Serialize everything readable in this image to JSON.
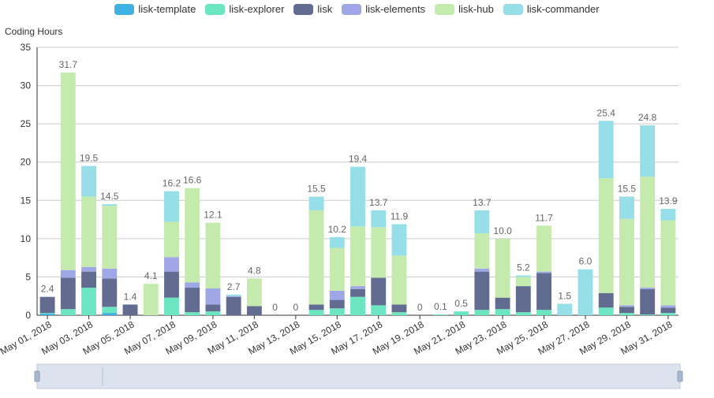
{
  "chart_data": {
    "type": "bar",
    "stacked": true,
    "ylabel": "Coding Hours",
    "ylim": [
      0,
      35
    ],
    "yticks": [
      0,
      5,
      10,
      15,
      20,
      25,
      30,
      35
    ],
    "grid": true,
    "legend_position": "top-center",
    "x_tick_labels": [
      "May 01, 2018",
      "May 03, 2018",
      "May 05, 2018",
      "May 07, 2018",
      "May 09, 2018",
      "May 11, 2018",
      "May 13, 2018",
      "May 15, 2018",
      "May 17, 2018",
      "May 19, 2018",
      "May 21, 2018",
      "May 23, 2018",
      "May 25, 2018",
      "May 27, 2018",
      "May 29, 2018",
      "May 31, 2018"
    ],
    "categories": [
      "May 01, 2018",
      "May 02, 2018",
      "May 03, 2018",
      "May 04, 2018",
      "May 05, 2018",
      "May 06, 2018",
      "May 07, 2018",
      "May 08, 2018",
      "May 09, 2018",
      "May 10, 2018",
      "May 11, 2018",
      "May 12, 2018",
      "May 13, 2018",
      "May 14, 2018",
      "May 15, 2018",
      "May 16, 2018",
      "May 17, 2018",
      "May 18, 2018",
      "May 19, 2018",
      "May 20, 2018",
      "May 21, 2018",
      "May 22, 2018",
      "May 23, 2018",
      "May 24, 2018",
      "May 25, 2018",
      "May 26, 2018",
      "May 27, 2018",
      "May 28, 2018",
      "May 29, 2018",
      "May 30, 2018",
      "May 31, 2018"
    ],
    "totals": [
      "2.4",
      "31.7",
      "19.5",
      "14.5",
      "1.4",
      "4.1",
      "16.2",
      "16.6",
      "12.1",
      "2.7",
      "4.8",
      "0",
      "0",
      "15.5",
      "10.2",
      "19.4",
      "13.7",
      "11.9",
      "0",
      "0.1",
      "0.5",
      "13.7",
      "10.0",
      "5.2",
      "11.7",
      "1.5",
      "6.0",
      "25.4",
      "15.5",
      "24.8",
      "13.9"
    ],
    "series": [
      {
        "name": "lisk-template",
        "color": "#3fb1e3",
        "values": [
          0.2,
          0,
          0,
          0.3,
          0,
          0,
          0,
          0,
          0,
          0,
          0,
          0,
          0,
          0,
          0,
          0,
          0,
          0,
          0,
          0,
          0,
          0,
          0,
          0,
          0,
          0,
          0,
          0,
          0,
          0,
          0
        ]
      },
      {
        "name": "lisk-explorer",
        "color": "#6be6c1",
        "values": [
          0.1,
          0.8,
          3.6,
          0.8,
          0,
          0,
          2.3,
          0.4,
          0.5,
          0,
          0,
          0,
          0,
          0.7,
          0.9,
          2.4,
          1.3,
          0.4,
          0,
          0.1,
          0.5,
          0.7,
          0.8,
          0.4,
          0.7,
          0,
          0,
          1.0,
          0.3,
          0.1,
          0.3
        ]
      },
      {
        "name": "lisk",
        "color": "#626c91",
        "values": [
          2.1,
          4.1,
          2.1,
          3.7,
          1.4,
          0,
          3.4,
          3.2,
          0.9,
          2.4,
          1.2,
          0,
          0,
          0.7,
          1.1,
          1.0,
          3.6,
          1.0,
          0,
          0,
          0,
          5.0,
          1.5,
          3.4,
          4.8,
          0,
          0,
          1.9,
          0.8,
          3.3,
          0.7
        ]
      },
      {
        "name": "lisk-elements",
        "color": "#a0a7e6",
        "values": [
          0,
          1.0,
          0.6,
          1.3,
          0,
          0,
          1.9,
          0.7,
          2.1,
          0.1,
          0,
          0,
          0,
          0,
          1.2,
          0.4,
          0,
          0,
          0,
          0,
          0,
          0.4,
          0,
          0,
          0.2,
          0,
          0,
          0,
          0.2,
          0.2,
          0.3
        ]
      },
      {
        "name": "lisk-hub",
        "color": "#c4ebad",
        "values": [
          0,
          25.8,
          9.2,
          8.2,
          0,
          4.1,
          4.6,
          12.3,
          8.6,
          0,
          3.6,
          0,
          0,
          12.3,
          5.6,
          7.8,
          6.6,
          6.4,
          0,
          0,
          0,
          4.6,
          7.7,
          1.2,
          6.0,
          0,
          0,
          15.0,
          11.3,
          14.5,
          11.1
        ]
      },
      {
        "name": "lisk-commander",
        "color": "#96dee8",
        "values": [
          0,
          0,
          4.0,
          0.2,
          0,
          0,
          4.0,
          0,
          0,
          0.2,
          0,
          0,
          0,
          1.8,
          1.4,
          7.8,
          2.2,
          4.1,
          0,
          0,
          0,
          3.0,
          0,
          0.2,
          0,
          1.5,
          6.0,
          7.5,
          2.9,
          6.7,
          1.5
        ]
      }
    ]
  }
}
